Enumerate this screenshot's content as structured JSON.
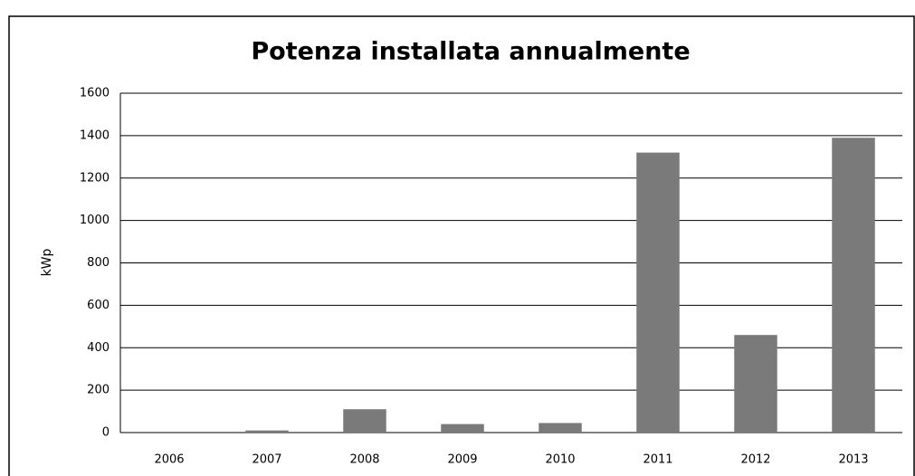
{
  "chart_data": {
    "type": "bar",
    "title": "Potenza installata annualmente",
    "y_label": "kWp",
    "categories": [
      "2006",
      "2007",
      "2008",
      "2009",
      "2010",
      "2011",
      "2012",
      "2013"
    ],
    "values": [
      0,
      10,
      110,
      40,
      45,
      1320,
      460,
      1390
    ],
    "color": "#7a7a7a",
    "ylim": [
      0,
      1600
    ],
    "yticks": [
      0,
      200,
      400,
      600,
      800,
      1000,
      1200,
      1400,
      1600
    ],
    "grid": true
  }
}
